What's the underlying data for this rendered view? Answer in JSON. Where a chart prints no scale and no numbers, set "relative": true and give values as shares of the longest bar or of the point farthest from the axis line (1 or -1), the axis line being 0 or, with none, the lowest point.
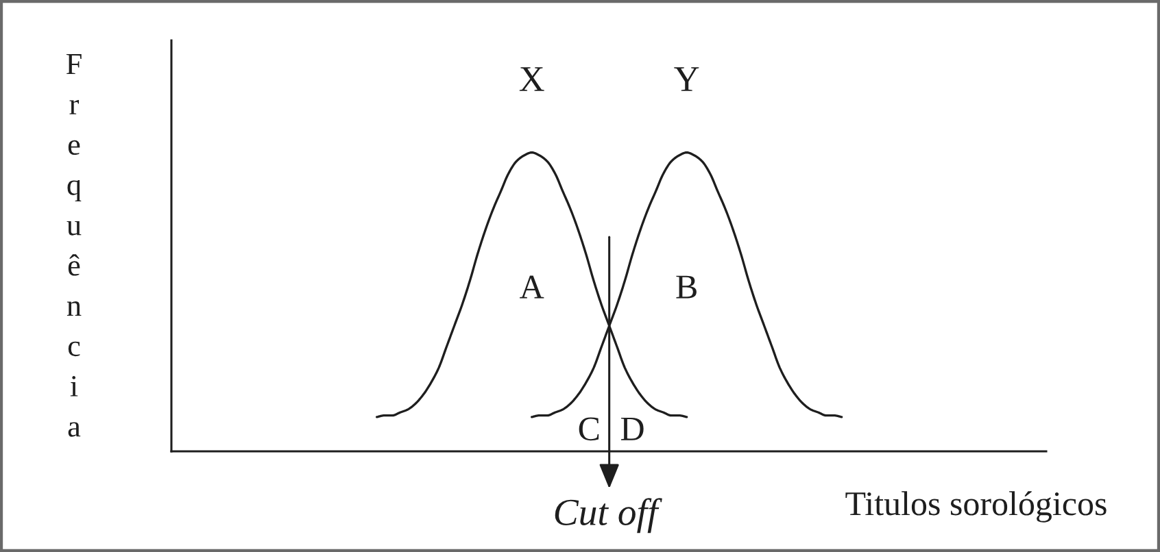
{
  "chart_data": {
    "type": "line",
    "relative": true,
    "categories": [
      null,
      null,
      null,
      null,
      null,
      null,
      null,
      null,
      null,
      null,
      null,
      null,
      null,
      null,
      null,
      null,
      null,
      null,
      null,
      null,
      null,
      null,
      null,
      null,
      null,
      null,
      null,
      null,
      null,
      null,
      null,
      null,
      null,
      null,
      null,
      null,
      null,
      null,
      null,
      null,
      null,
      null,
      null,
      null,
      null,
      null,
      null,
      null,
      null,
      null,
      null,
      null,
      null,
      null,
      null,
      null,
      null,
      null,
      null,
      null,
      null
    ],
    "series": [
      {
        "name": "X",
        "color": "#1e1e1e",
        "values": [
          0.115,
          0.12,
          0.12,
          0.13,
          0.14,
          0.16,
          0.19,
          0.23,
          0.28,
          0.35,
          0.42,
          0.49,
          0.57,
          0.66,
          0.74,
          0.81,
          0.87,
          0.93,
          0.97,
          0.99,
          1.0,
          0.99,
          0.97,
          0.93,
          0.87,
          0.81,
          0.74,
          0.66,
          0.57,
          0.49,
          0.42,
          0.35,
          0.28,
          0.23,
          0.19,
          0.16,
          0.14,
          0.13,
          0.12,
          0.12,
          0.115,
          null,
          null,
          null,
          null,
          null,
          null,
          null,
          null,
          null,
          null,
          null,
          null,
          null,
          null,
          null,
          null,
          null,
          null,
          null,
          null
        ]
      },
      {
        "name": "Y",
        "color": "#1e1e1e",
        "values": [
          null,
          null,
          null,
          null,
          null,
          null,
          null,
          null,
          null,
          null,
          null,
          null,
          null,
          null,
          null,
          null,
          null,
          null,
          null,
          null,
          0.115,
          0.12,
          0.12,
          0.13,
          0.14,
          0.16,
          0.19,
          0.23,
          0.28,
          0.35,
          0.42,
          0.49,
          0.57,
          0.66,
          0.74,
          0.81,
          0.87,
          0.93,
          0.97,
          0.99,
          1.0,
          0.99,
          0.97,
          0.93,
          0.87,
          0.81,
          0.74,
          0.66,
          0.57,
          0.49,
          0.42,
          0.35,
          0.28,
          0.23,
          0.19,
          0.16,
          0.14,
          0.13,
          0.12,
          0.12,
          0.115
        ]
      }
    ],
    "xlabel": "Titulos sorológicos",
    "ylabel": "Frequência",
    "annotations": [
      "A",
      "B",
      "C",
      "D",
      "Cut off"
    ],
    "line_style": "solid"
  }
}
